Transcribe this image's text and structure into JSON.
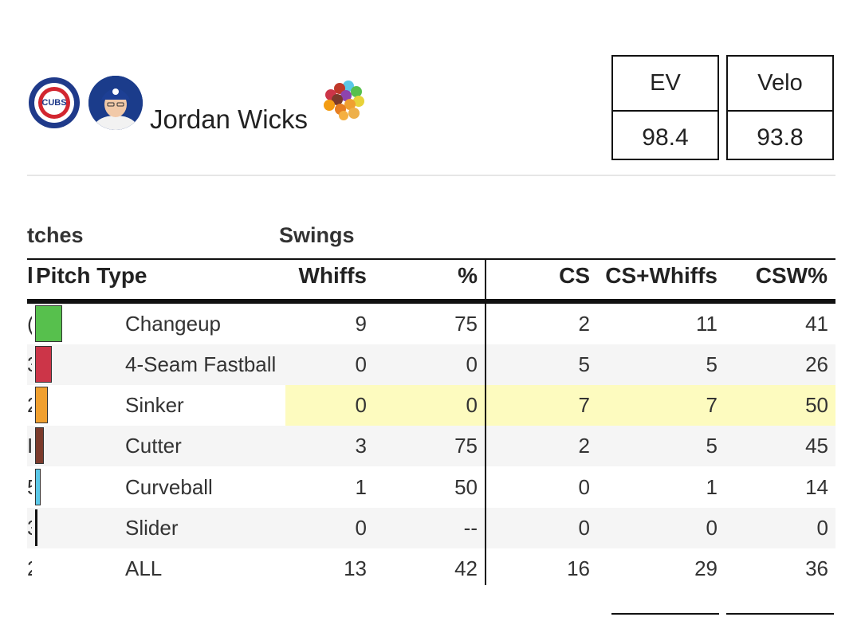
{
  "player": {
    "name": "Jordan Wicks",
    "team_logo_icon": "cubs-logo-icon",
    "avatar_icon": "player-headshot-icon",
    "arsenal_icon": "pitch-arsenal-cluster-icon"
  },
  "stats": [
    {
      "label": "EV",
      "value": "98.4"
    },
    {
      "label": "Velo",
      "value": "93.8"
    }
  ],
  "table": {
    "group_headers": {
      "pitches": "tches",
      "swings": "Swings"
    },
    "columns": {
      "pitch_type": "Pitch Type",
      "whiffs": "Whiffs",
      "pct": "%",
      "cs": "CS",
      "cs_whiffs": "CS+Whiffs",
      "csw": "CSW%",
      "lead": "l"
    },
    "rows": [
      {
        "lead": "(",
        "type": "Changeup",
        "color": "#57c04d",
        "usage": 0.3,
        "whiffs": "9",
        "pct": "75",
        "cs": "2",
        "csw_count": "11",
        "csw": "41",
        "highlight": false
      },
      {
        "lead": "3",
        "type": "4-Seam Fastball",
        "color": "#cc3548",
        "usage": 0.19,
        "whiffs": "0",
        "pct": "0",
        "cs": "5",
        "csw_count": "5",
        "csw": "26",
        "highlight": false
      },
      {
        "lead": "2",
        "type": "Sinker",
        "color": "#f0a030",
        "usage": 0.14,
        "whiffs": "0",
        "pct": "0",
        "cs": "7",
        "csw_count": "7",
        "csw": "50",
        "highlight": true
      },
      {
        "lead": "I",
        "type": "Cutter",
        "color": "#7b3a2b",
        "usage": 0.1,
        "whiffs": "3",
        "pct": "75",
        "cs": "2",
        "csw_count": "5",
        "csw": "45",
        "highlight": false
      },
      {
        "lead": "5",
        "type": "Curveball",
        "color": "#5bc8e8",
        "usage": 0.06,
        "whiffs": "1",
        "pct": "50",
        "cs": "0",
        "csw_count": "1",
        "csw": "14",
        "highlight": false
      },
      {
        "lead": "3",
        "type": "Slider",
        "color": "#111111",
        "usage": 0.02,
        "whiffs": "0",
        "pct": "--",
        "cs": "0",
        "csw_count": "0",
        "csw": "0",
        "highlight": false
      },
      {
        "lead": "2",
        "type": "ALL",
        "color": "",
        "usage": 0,
        "whiffs": "13",
        "pct": "42",
        "cs": "16",
        "csw_count": "29",
        "csw": "36",
        "highlight": false
      }
    ]
  }
}
